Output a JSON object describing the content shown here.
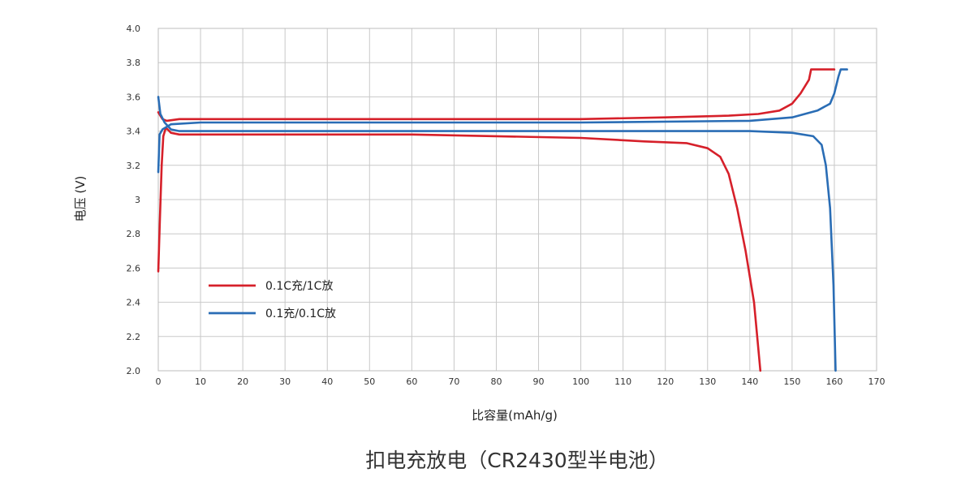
{
  "chart_data": {
    "type": "line",
    "title": "扣电充放电（CR2430型半电池）",
    "xlabel": "比容量(mAh/g)",
    "ylabel": "电压 (V)",
    "xlim": [
      0,
      170
    ],
    "ylim": [
      2.0,
      4.0
    ],
    "x_ticks": [
      "0",
      "10",
      "20",
      "30",
      "40",
      "50",
      "60",
      "70",
      "80",
      "90",
      "100",
      "110",
      "120",
      "130",
      "140",
      "150",
      "160",
      "170"
    ],
    "y_ticks": [
      "2.0",
      "2.2",
      "2.4",
      "2.6",
      "2.8",
      "3",
      "3.2",
      "3.4",
      "3.6",
      "3.8",
      "4.0"
    ],
    "grid": true,
    "legend_position": "lower-left",
    "series": [
      {
        "name": "0.1C充/1C放",
        "color": "#d6202a",
        "curves": [
          [
            [
              0,
              3.51
            ],
            [
              1,
              3.47
            ],
            [
              2,
              3.46
            ],
            [
              5,
              3.47
            ],
            [
              20,
              3.47
            ],
            [
              60,
              3.47
            ],
            [
              100,
              3.47
            ],
            [
              120,
              3.48
            ],
            [
              135,
              3.49
            ],
            [
              142,
              3.5
            ],
            [
              147,
              3.52
            ],
            [
              150,
              3.56
            ],
            [
              152,
              3.62
            ],
            [
              154,
              3.7
            ],
            [
              154.5,
              3.76
            ],
            [
              160,
              3.76
            ]
          ],
          [
            [
              0,
              2.58
            ],
            [
              0.4,
              2.9
            ],
            [
              0.8,
              3.2
            ],
            [
              1.2,
              3.37
            ],
            [
              1.8,
              3.42
            ],
            [
              3,
              3.39
            ],
            [
              5,
              3.38
            ],
            [
              20,
              3.38
            ],
            [
              40,
              3.38
            ],
            [
              60,
              3.38
            ],
            [
              80,
              3.37
            ],
            [
              100,
              3.36
            ],
            [
              115,
              3.34
            ],
            [
              125,
              3.33
            ],
            [
              130,
              3.3
            ],
            [
              133,
              3.25
            ],
            [
              135,
              3.15
            ],
            [
              137,
              2.95
            ],
            [
              139,
              2.7
            ],
            [
              141,
              2.4
            ],
            [
              142.5,
              2.0
            ]
          ]
        ]
      },
      {
        "name": "0.1充/0.1C放",
        "color": "#2a6db5",
        "curves": [
          [
            [
              0,
              3.16
            ],
            [
              0.3,
              3.38
            ],
            [
              1,
              3.41
            ],
            [
              3,
              3.44
            ],
            [
              10,
              3.45
            ],
            [
              50,
              3.45
            ],
            [
              100,
              3.45
            ],
            [
              140,
              3.46
            ],
            [
              150,
              3.48
            ],
            [
              156,
              3.52
            ],
            [
              159,
              3.56
            ],
            [
              160,
              3.62
            ],
            [
              161,
              3.72
            ],
            [
              161.5,
              3.76
            ],
            [
              163,
              3.76
            ]
          ],
          [
            [
              0,
              3.6
            ],
            [
              0.5,
              3.5
            ],
            [
              1.5,
              3.45
            ],
            [
              3,
              3.41
            ],
            [
              5,
              3.4
            ],
            [
              20,
              3.4
            ],
            [
              60,
              3.4
            ],
            [
              100,
              3.4
            ],
            [
              140,
              3.4
            ],
            [
              150,
              3.39
            ],
            [
              155,
              3.37
            ],
            [
              157,
              3.32
            ],
            [
              158,
              3.2
            ],
            [
              159,
              2.95
            ],
            [
              159.8,
              2.5
            ],
            [
              160.3,
              2.0
            ]
          ]
        ]
      }
    ]
  }
}
